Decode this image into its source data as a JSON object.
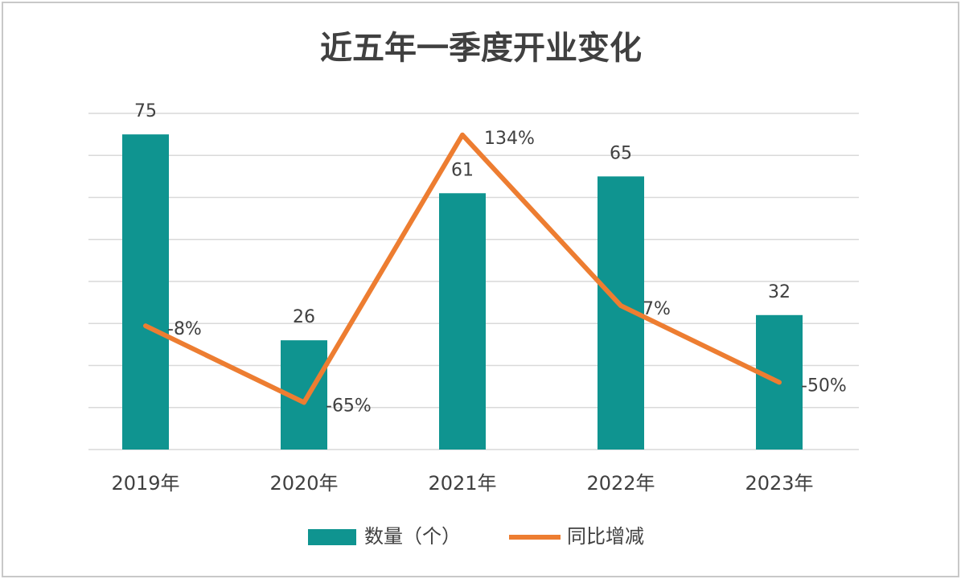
{
  "chart_data": {
    "type": "combo",
    "title": "近五年一季度开业变化",
    "categories": [
      "2019年",
      "2020年",
      "2021年",
      "2022年",
      "2023年"
    ],
    "series": [
      {
        "name": "数量（个）",
        "type": "bar",
        "color": "#0f9490",
        "values": [
          75,
          26,
          61,
          65,
          32
        ]
      },
      {
        "name": "同比增减",
        "type": "line",
        "axis": "y2",
        "color": "#ed7d31",
        "values": [
          -8,
          -65,
          134,
          7,
          -50
        ],
        "value_labels": [
          "-8%",
          "-65%",
          "134%",
          "7%",
          "-50%"
        ]
      }
    ],
    "ylim": [
      0,
      80
    ],
    "yticks": [
      0,
      10,
      20,
      30,
      40,
      50,
      60,
      70,
      80
    ],
    "y2lim": [
      -100,
      150
    ],
    "grid": true,
    "legend": "bottom"
  }
}
